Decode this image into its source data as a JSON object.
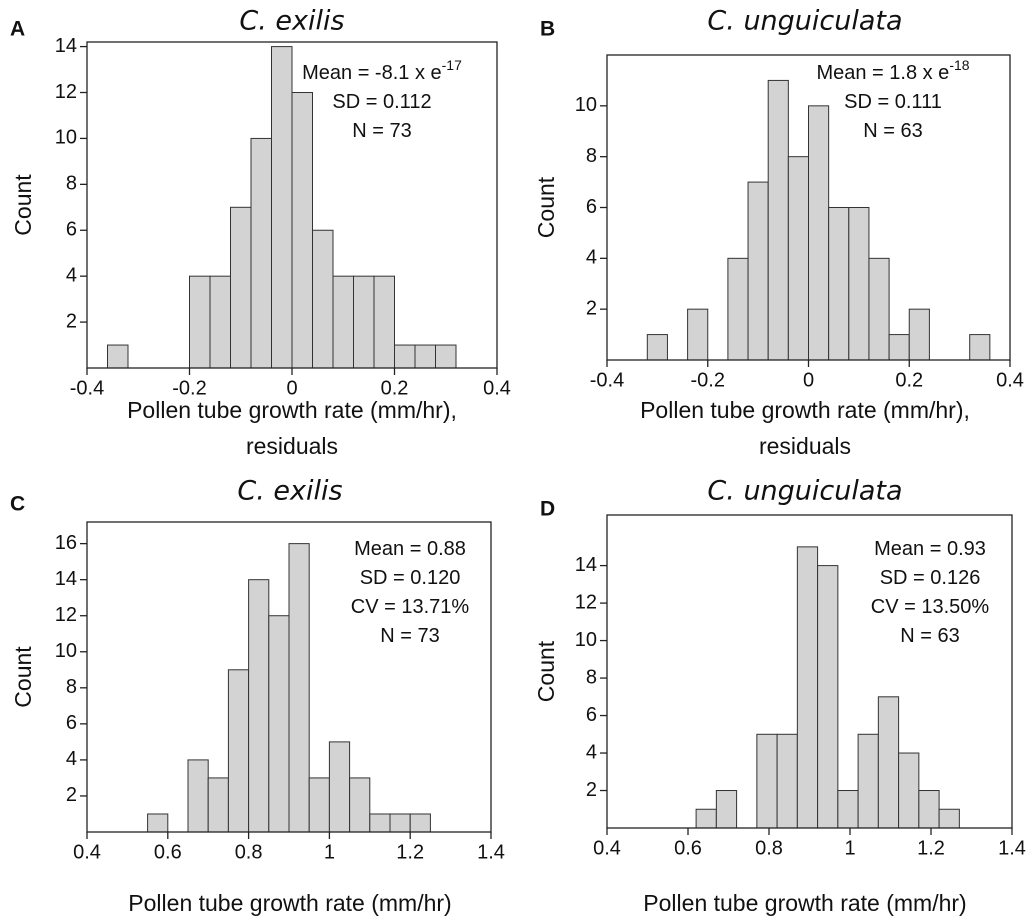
{
  "chart_data": [
    {
      "type": "histogram",
      "label": "A",
      "title": "C. exilis",
      "ylabel": "Count",
      "xlabel": [
        "Pollen tube growth rate (mm/hr),",
        "residuals"
      ],
      "bins": [
        -0.36,
        -0.32,
        -0.28,
        -0.24,
        -0.2,
        -0.16,
        -0.12,
        -0.08,
        -0.04,
        0,
        0.04,
        0.08,
        0.12,
        0.16,
        0.2,
        0.24,
        0.28,
        0.32
      ],
      "values": [
        1,
        0,
        0,
        0,
        4,
        4,
        7,
        10,
        14,
        12,
        6,
        4,
        4,
        4,
        1,
        1,
        1
      ],
      "color": "#d3d3d3",
      "xlim": [
        -0.4,
        0.4
      ],
      "xticks": [
        -0.4,
        -0.2,
        0,
        0.2,
        0.4
      ],
      "ylim": [
        0,
        14.2
      ],
      "yticks": [
        2,
        4,
        6,
        8,
        10,
        12,
        14
      ],
      "annotations": [
        {
          "text": "Mean = -8.1 x e",
          "sup": "-17"
        },
        {
          "text": "SD = 0.112"
        },
        {
          "text": "N = 73"
        }
      ]
    },
    {
      "type": "histogram",
      "label": "B",
      "title": "C. unguiculata",
      "ylabel": "Count",
      "xlabel": [
        "Pollen tube growth rate (mm/hr),",
        "residuals"
      ],
      "bins": [
        -0.32,
        -0.28,
        -0.24,
        -0.2,
        -0.16,
        -0.12,
        -0.08,
        -0.04,
        0,
        0.04,
        0.08,
        0.12,
        0.16,
        0.2,
        0.24,
        0.28,
        0.32,
        0.36
      ],
      "values": [
        1,
        0,
        2,
        0,
        4,
        7,
        11,
        8,
        10,
        6,
        6,
        4,
        1,
        2,
        0,
        0,
        1
      ],
      "color": "#d3d3d3",
      "xlim": [
        -0.4,
        0.4
      ],
      "xticks": [
        -0.4,
        -0.2,
        0,
        0.2,
        0.4
      ],
      "ylim": [
        0,
        12
      ],
      "yticks": [
        2,
        4,
        6,
        8,
        10
      ],
      "annotations": [
        {
          "text": "Mean = 1.8 x e",
          "sup": "-18"
        },
        {
          "text": "SD = 0.111"
        },
        {
          "text": "N = 63"
        }
      ]
    },
    {
      "type": "histogram",
      "label": "C",
      "title": "C. exilis",
      "ylabel": "Count",
      "xlabel": [
        "Pollen tube growth rate (mm/hr)"
      ],
      "bins": [
        0.55,
        0.6,
        0.65,
        0.7,
        0.75,
        0.8,
        0.85,
        0.9,
        0.95,
        1,
        1.05,
        1.1,
        1.15,
        1.2,
        1.25
      ],
      "values": [
        1,
        0,
        4,
        3,
        9,
        14,
        12,
        16,
        3,
        5,
        3,
        1,
        1,
        1
      ],
      "color": "#d3d3d3",
      "xlim": [
        0.4,
        1.4
      ],
      "xticks": [
        0.4,
        0.6,
        0.8,
        1,
        1.2,
        1.4
      ],
      "ylim": [
        0,
        17.2
      ],
      "yticks": [
        2,
        4,
        6,
        8,
        10,
        12,
        14,
        16
      ],
      "annotations": [
        {
          "text": "Mean = 0.88"
        },
        {
          "text": "SD = 0.120"
        },
        {
          "text": "CV = 13.71%"
        },
        {
          "text": "N = 73"
        }
      ]
    },
    {
      "type": "histogram",
      "label": "D",
      "title": "C. unguiculata",
      "ylabel": "Count",
      "xlabel": [
        "Pollen tube growth rate (mm/hr)"
      ],
      "bins": [
        0.62,
        0.67,
        0.72,
        0.77,
        0.82,
        0.87,
        0.92,
        0.97,
        1.02,
        1.07,
        1.12,
        1.17,
        1.22,
        1.27
      ],
      "values": [
        1,
        2,
        0,
        5,
        5,
        15,
        14,
        2,
        5,
        7,
        4,
        2,
        1
      ],
      "color": "#d3d3d3",
      "xlim": [
        0.4,
        1.4
      ],
      "xticks": [
        0.4,
        0.6,
        0.8,
        1,
        1.2,
        1.4
      ],
      "ylim": [
        0,
        16.7
      ],
      "yticks": [
        2,
        4,
        6,
        8,
        10,
        12,
        14
      ],
      "annotations": [
        {
          "text": "Mean = 0.93"
        },
        {
          "text": "SD = 0.126"
        },
        {
          "text": "CV = 13.50%"
        },
        {
          "text": "N = 63"
        }
      ]
    }
  ]
}
